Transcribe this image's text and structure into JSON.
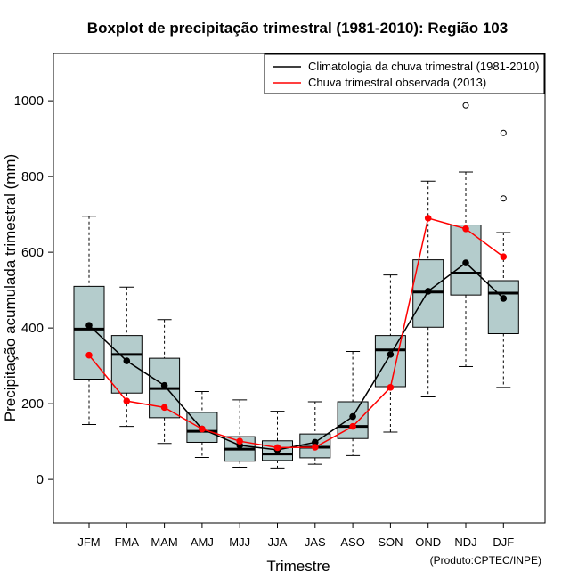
{
  "chart_data": {
    "type": "boxplot",
    "title": "Boxplot de precipitação trimestral (1981-2010): Região 103",
    "xlabel": "Trimestre",
    "ylabel": "Precipitação acumulada trimestral (mm)",
    "ylim": [
      -115,
      1125
    ],
    "yticks": [
      0,
      200,
      400,
      600,
      800,
      1000
    ],
    "credit": "(Produto:CPTEC/INPE)",
    "categories": [
      "JFM",
      "FMA",
      "MAM",
      "AMJ",
      "MJJ",
      "JJA",
      "JAS",
      "ASO",
      "SON",
      "OND",
      "NDJ",
      "DJF"
    ],
    "boxes": [
      {
        "whisker_low": 145,
        "q1": 265,
        "median": 397,
        "q3": 510,
        "whisker_high": 695,
        "outliers": []
      },
      {
        "whisker_low": 140,
        "q1": 228,
        "median": 330,
        "q3": 380,
        "whisker_high": 508,
        "outliers": []
      },
      {
        "whisker_low": 95,
        "q1": 163,
        "median": 240,
        "q3": 320,
        "whisker_high": 422,
        "outliers": []
      },
      {
        "whisker_low": 58,
        "q1": 98,
        "median": 127,
        "q3": 177,
        "whisker_high": 232,
        "outliers": []
      },
      {
        "whisker_low": 32,
        "q1": 48,
        "median": 80,
        "q3": 113,
        "whisker_high": 210,
        "outliers": []
      },
      {
        "whisker_low": 30,
        "q1": 50,
        "median": 67,
        "q3": 102,
        "whisker_high": 180,
        "outliers": []
      },
      {
        "whisker_low": 40,
        "q1": 57,
        "median": 85,
        "q3": 120,
        "whisker_high": 205,
        "outliers": []
      },
      {
        "whisker_low": 63,
        "q1": 108,
        "median": 140,
        "q3": 205,
        "whisker_high": 338,
        "outliers": []
      },
      {
        "whisker_low": 125,
        "q1": 245,
        "median": 342,
        "q3": 380,
        "whisker_high": 540,
        "outliers": []
      },
      {
        "whisker_low": 218,
        "q1": 402,
        "median": 495,
        "q3": 580,
        "whisker_high": 788,
        "outliers": []
      },
      {
        "whisker_low": 298,
        "q1": 487,
        "median": 545,
        "q3": 672,
        "whisker_high": 812,
        "outliers": [
          988
        ]
      },
      {
        "whisker_low": 243,
        "q1": 385,
        "median": 492,
        "q3": 525,
        "whisker_high": 652,
        "outliers": [
          742,
          915
        ]
      }
    ],
    "series": [
      {
        "name": "Climatologia da chuva trimestral (1981-2010)",
        "color": "#000000",
        "values": [
          407,
          313,
          248,
          133,
          90,
          78,
          98,
          166,
          330,
          497,
          572,
          478
        ]
      },
      {
        "name": "Chuva trimestral observada (2013)",
        "color": "#ff0000",
        "values": [
          328,
          207,
          190,
          133,
          101,
          84,
          85,
          140,
          243,
          690,
          662,
          588
        ]
      }
    ],
    "legend_position": "top-right",
    "box_fill": "#b4cccc"
  }
}
